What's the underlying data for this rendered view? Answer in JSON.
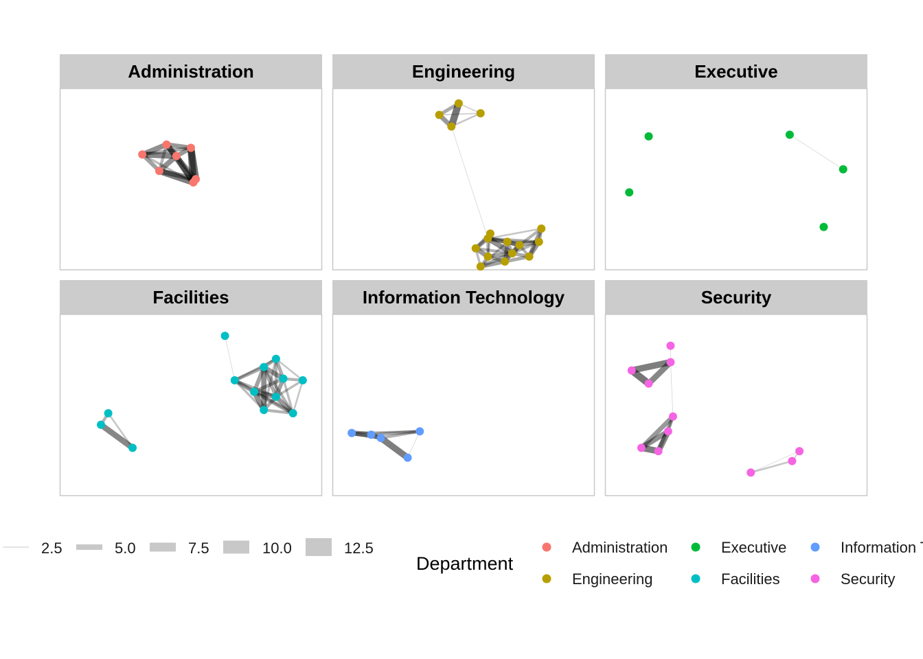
{
  "chart_data": {
    "type": "network",
    "panels": [
      {
        "name": "Administration",
        "color": "#F8766D",
        "nodes": [
          [
            0.3,
            0.35
          ],
          [
            0.4,
            0.29
          ],
          [
            0.5,
            0.31
          ],
          [
            0.44,
            0.36
          ],
          [
            0.37,
            0.45
          ],
          [
            0.51,
            0.52
          ],
          [
            0.52,
            0.5
          ]
        ],
        "edges": [
          [
            0,
            1,
            9
          ],
          [
            0,
            2,
            6
          ],
          [
            0,
            3,
            10
          ],
          [
            0,
            4,
            7
          ],
          [
            0,
            5,
            4
          ],
          [
            1,
            2,
            8
          ],
          [
            1,
            3,
            10
          ],
          [
            1,
            4,
            5
          ],
          [
            1,
            5,
            9
          ],
          [
            2,
            3,
            8
          ],
          [
            2,
            5,
            12
          ],
          [
            2,
            6,
            12
          ],
          [
            3,
            4,
            9
          ],
          [
            3,
            5,
            10
          ],
          [
            3,
            6,
            8
          ],
          [
            4,
            5,
            11
          ],
          [
            4,
            6,
            9
          ],
          [
            5,
            6,
            6
          ]
        ]
      },
      {
        "name": "Engineering",
        "color": "#B79F00",
        "nodes": [
          [
            0.4,
            0.11
          ],
          [
            0.48,
            0.04
          ],
          [
            0.57,
            0.1
          ],
          [
            0.45,
            0.18
          ],
          [
            0.6,
            0.86
          ],
          [
            0.68,
            0.88
          ],
          [
            0.81,
            0.88
          ],
          [
            0.7,
            0.95
          ],
          [
            0.73,
            0.9
          ],
          [
            0.61,
            0.83
          ],
          [
            0.82,
            0.8
          ],
          [
            0.55,
            0.92
          ],
          [
            0.6,
            0.97
          ],
          [
            0.57,
            1.03
          ],
          [
            0.67,
            1.0
          ],
          [
            0.77,
            0.97
          ]
        ],
        "edges": [
          [
            0,
            1,
            6
          ],
          [
            0,
            2,
            2
          ],
          [
            0,
            3,
            8
          ],
          [
            1,
            2,
            2
          ],
          [
            1,
            3,
            12
          ],
          [
            2,
            3,
            3
          ],
          [
            3,
            4,
            1
          ],
          [
            4,
            5,
            7
          ],
          [
            4,
            6,
            5
          ],
          [
            4,
            7,
            9
          ],
          [
            4,
            8,
            6
          ],
          [
            4,
            9,
            4
          ],
          [
            4,
            10,
            3
          ],
          [
            4,
            11,
            7
          ],
          [
            4,
            12,
            5
          ],
          [
            5,
            6,
            4
          ],
          [
            5,
            7,
            6
          ],
          [
            5,
            8,
            8
          ],
          [
            5,
            13,
            4
          ],
          [
            5,
            14,
            6
          ],
          [
            6,
            7,
            5
          ],
          [
            6,
            8,
            7
          ],
          [
            6,
            10,
            6
          ],
          [
            6,
            15,
            8
          ],
          [
            7,
            8,
            9
          ],
          [
            7,
            11,
            5
          ],
          [
            7,
            12,
            7
          ],
          [
            7,
            13,
            6
          ],
          [
            7,
            14,
            5
          ],
          [
            7,
            15,
            6
          ],
          [
            8,
            10,
            5
          ],
          [
            8,
            14,
            6
          ],
          [
            8,
            15,
            5
          ],
          [
            9,
            11,
            6
          ],
          [
            9,
            12,
            4
          ],
          [
            10,
            15,
            7
          ],
          [
            11,
            12,
            8
          ],
          [
            11,
            13,
            4
          ],
          [
            12,
            13,
            5
          ],
          [
            12,
            14,
            6
          ],
          [
            13,
            14,
            7
          ],
          [
            14,
            15,
            6
          ]
        ]
      },
      {
        "name": "Executive",
        "color": "#00BA38",
        "nodes": [
          [
            0.14,
            0.24
          ],
          [
            0.72,
            0.23
          ],
          [
            0.94,
            0.44
          ],
          [
            0.06,
            0.58
          ],
          [
            0.86,
            0.79
          ]
        ],
        "edges": [
          [
            1,
            2,
            1
          ]
        ]
      },
      {
        "name": "Facilities",
        "color": "#00BFC4",
        "nodes": [
          [
            0.64,
            0.08
          ],
          [
            0.68,
            0.35
          ],
          [
            0.8,
            0.27
          ],
          [
            0.85,
            0.22
          ],
          [
            0.88,
            0.34
          ],
          [
            0.96,
            0.35
          ],
          [
            0.76,
            0.42
          ],
          [
            0.85,
            0.45
          ],
          [
            0.8,
            0.53
          ],
          [
            0.92,
            0.55
          ],
          [
            0.16,
            0.55
          ],
          [
            0.13,
            0.62
          ],
          [
            0.26,
            0.76
          ]
        ],
        "edges": [
          [
            0,
            1,
            1
          ],
          [
            1,
            2,
            6
          ],
          [
            1,
            3,
            4
          ],
          [
            1,
            6,
            7
          ],
          [
            1,
            7,
            5
          ],
          [
            1,
            8,
            4
          ],
          [
            1,
            9,
            3
          ],
          [
            2,
            3,
            6
          ],
          [
            2,
            4,
            8
          ],
          [
            2,
            6,
            7
          ],
          [
            2,
            7,
            6
          ],
          [
            2,
            8,
            9
          ],
          [
            2,
            9,
            5
          ],
          [
            3,
            4,
            6
          ],
          [
            3,
            5,
            3
          ],
          [
            3,
            7,
            5
          ],
          [
            3,
            8,
            4
          ],
          [
            4,
            5,
            5
          ],
          [
            4,
            6,
            6
          ],
          [
            4,
            7,
            7
          ],
          [
            4,
            9,
            4
          ],
          [
            5,
            7,
            4
          ],
          [
            5,
            9,
            3
          ],
          [
            6,
            7,
            8
          ],
          [
            6,
            8,
            9
          ],
          [
            6,
            9,
            7
          ],
          [
            7,
            8,
            6
          ],
          [
            7,
            9,
            8
          ],
          [
            8,
            9,
            5
          ],
          [
            10,
            11,
            5
          ],
          [
            10,
            12,
            3
          ],
          [
            11,
            12,
            10
          ]
        ]
      },
      {
        "name": "Information Technology",
        "color": "#619CFF",
        "nodes": [
          [
            0.04,
            0.67
          ],
          [
            0.12,
            0.68
          ],
          [
            0.16,
            0.7
          ],
          [
            0.32,
            0.66
          ],
          [
            0.27,
            0.82
          ]
        ],
        "edges": [
          [
            0,
            1,
            9
          ],
          [
            0,
            2,
            7
          ],
          [
            0,
            3,
            4
          ],
          [
            1,
            2,
            8
          ],
          [
            1,
            3,
            6
          ],
          [
            2,
            3,
            5
          ],
          [
            2,
            4,
            11
          ],
          [
            3,
            4,
            1
          ]
        ]
      },
      {
        "name": "Security",
        "color": "#F564E3",
        "nodes": [
          [
            0.23,
            0.14
          ],
          [
            0.23,
            0.24
          ],
          [
            0.07,
            0.29
          ],
          [
            0.14,
            0.37
          ],
          [
            0.24,
            0.57
          ],
          [
            0.22,
            0.66
          ],
          [
            0.11,
            0.76
          ],
          [
            0.18,
            0.78
          ],
          [
            0.76,
            0.78
          ],
          [
            0.73,
            0.84
          ],
          [
            0.56,
            0.91
          ]
        ],
        "edges": [
          [
            0,
            1,
            1
          ],
          [
            1,
            2,
            11
          ],
          [
            1,
            3,
            10
          ],
          [
            2,
            3,
            12
          ],
          [
            1,
            4,
            1
          ],
          [
            4,
            5,
            5
          ],
          [
            4,
            6,
            8
          ],
          [
            4,
            7,
            6
          ],
          [
            5,
            6,
            9
          ],
          [
            5,
            7,
            10
          ],
          [
            6,
            7,
            11
          ],
          [
            8,
            9,
            2
          ],
          [
            8,
            10,
            1
          ],
          [
            9,
            10,
            3
          ]
        ]
      }
    ],
    "legends": {
      "width": {
        "title": "",
        "values": [
          "2.5",
          "5.0",
          "7.5",
          "10.0",
          "12.5"
        ]
      },
      "color": {
        "title": "Department",
        "entries": [
          {
            "label": "Administration",
            "color": "#F8766D"
          },
          {
            "label": "Engineering",
            "color": "#B79F00"
          },
          {
            "label": "Executive",
            "color": "#00BA38"
          },
          {
            "label": "Facilities",
            "color": "#00BFC4"
          },
          {
            "label": "Information Technology",
            "color": "#619CFF"
          },
          {
            "label": "Security",
            "color": "#F564E3"
          }
        ]
      }
    }
  }
}
